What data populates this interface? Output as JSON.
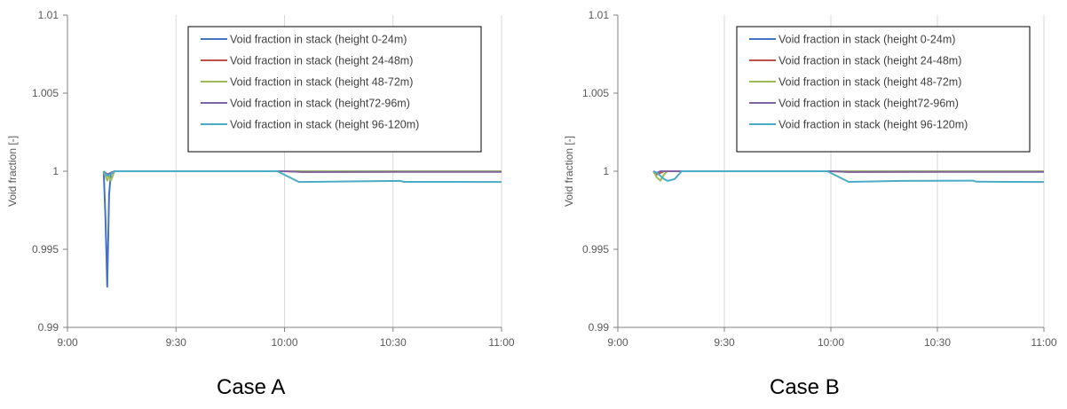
{
  "chart_data": [
    {
      "type": "line",
      "title": "",
      "caption": "Case A",
      "xlabel": "",
      "ylabel": "Void fraction [-]",
      "ylim": [
        0.99,
        1.01
      ],
      "yticks": [
        "0.99",
        "0.995",
        "1",
        "1.005",
        "1.01"
      ],
      "xlim": [
        "9:00",
        "11:00"
      ],
      "xticks": [
        "9:00",
        "9:30",
        "10:00",
        "10:30",
        "11:00"
      ],
      "grid": "vertical",
      "legend_position": "top-right",
      "series": [
        {
          "name": "Void fraction in stack (height 0-24m)",
          "color": "#4472C4",
          "x": [
            "9:10",
            "9:10:30",
            "9:11",
            "9:11:30",
            "9:12",
            "9:13",
            "9:15",
            "9:30",
            "10:00",
            "10:30",
            "11:00"
          ],
          "y": [
            1.0,
            0.997,
            0.9926,
            0.9985,
            0.9999,
            1.0,
            1.0,
            1.0,
            1.0,
            1.0,
            1.0
          ]
        },
        {
          "name": "Void fraction in stack (height 24-48m)",
          "color": "#C0504D",
          "x": [
            "9:10",
            "9:11",
            "9:12",
            "9:13",
            "9:30",
            "10:00",
            "10:05",
            "10:30",
            "11:00"
          ],
          "y": [
            1.0,
            0.9997,
            0.9998,
            1.0,
            1.0,
            1.0,
            0.99996,
            0.99997,
            0.99997
          ]
        },
        {
          "name": "Void fraction in stack (height 48-72m)",
          "color": "#9BBB59",
          "x": [
            "9:10",
            "9:11",
            "9:11:30",
            "9:12",
            "9:13",
            "9:30",
            "10:00",
            "11:00"
          ],
          "y": [
            1.0,
            0.9994,
            0.9997,
            0.9994,
            1.0,
            1.0,
            1.0,
            1.0
          ]
        },
        {
          "name": "Void fraction in stack (height72-96m)",
          "color": "#8064A2",
          "x": [
            "9:10",
            "9:11",
            "9:12",
            "9:13",
            "9:30",
            "10:00",
            "10:05",
            "10:30",
            "11:00"
          ],
          "y": [
            1.0,
            0.9998,
            0.9999,
            1.0,
            1.0,
            1.0,
            0.99995,
            0.99996,
            0.99996
          ]
        },
        {
          "name": "Void fraction in stack (height 96-120m)",
          "color": "#4BACC6",
          "x": [
            "9:10",
            "9:11",
            "9:12",
            "9:13",
            "9:30",
            "9:58",
            "10:04",
            "10:20",
            "10:32",
            "10:33",
            "10:45",
            "11:00"
          ],
          "y": [
            1.0,
            0.9997,
            0.9998,
            1.0,
            1.0,
            1.0,
            0.99931,
            0.99935,
            0.99938,
            0.99932,
            0.99932,
            0.99931
          ]
        }
      ]
    },
    {
      "type": "line",
      "title": "",
      "caption": "Case B",
      "xlabel": "",
      "ylabel": "Void fraction [-]",
      "ylim": [
        0.99,
        1.01
      ],
      "yticks": [
        "0.99",
        "0.995",
        "1",
        "1.005",
        "1.01"
      ],
      "xlim": [
        "9:00",
        "11:00"
      ],
      "xticks": [
        "9:00",
        "9:30",
        "10:00",
        "10:30",
        "11:00"
      ],
      "grid": "vertical",
      "legend_position": "top-right",
      "series": [
        {
          "name": "Void fraction in stack (height 0-24m)",
          "color": "#4472C4",
          "x": [
            "9:10",
            "9:11",
            "9:12",
            "9:13",
            "9:30",
            "10:00",
            "11:00"
          ],
          "y": [
            1.0,
            0.9998,
            0.9999,
            1.0,
            1.0,
            1.0,
            1.0
          ]
        },
        {
          "name": "Void fraction in stack (height 24-48m)",
          "color": "#C0504D",
          "x": [
            "9:10",
            "9:11",
            "9:12",
            "9:13",
            "9:30",
            "10:00",
            "10:05",
            "10:30",
            "11:00"
          ],
          "y": [
            1.0,
            0.9998,
            0.9999,
            1.0,
            1.0,
            1.0,
            0.99996,
            0.99997,
            0.99997
          ]
        },
        {
          "name": "Void fraction in stack (height 48-72m)",
          "color": "#9BBB59",
          "x": [
            "9:10",
            "9:11",
            "9:12",
            "9:13",
            "9:14",
            "9:30",
            "10:00",
            "11:00"
          ],
          "y": [
            1.0,
            0.9996,
            0.9994,
            0.9998,
            1.0,
            1.0,
            1.0,
            1.0
          ]
        },
        {
          "name": "Void fraction in stack (height72-96m)",
          "color": "#8064A2",
          "x": [
            "9:10",
            "9:11",
            "9:12",
            "9:30",
            "10:00",
            "10:05",
            "10:30",
            "11:00"
          ],
          "y": [
            1.0,
            0.9999,
            1.0,
            1.0,
            1.0,
            0.99995,
            0.99996,
            0.99996
          ]
        },
        {
          "name": "Void fraction in stack (height 96-120m)",
          "color": "#4BACC6",
          "x": [
            "9:10",
            "9:11",
            "9:12",
            "9:13",
            "9:14",
            "9:16",
            "9:18",
            "9:30",
            "9:59",
            "10:05",
            "10:20",
            "10:40",
            "10:41",
            "10:50",
            "11:00"
          ],
          "y": [
            1.0,
            0.9999,
            0.9997,
            0.9995,
            0.99938,
            0.9995,
            1.0,
            1.0,
            1.0,
            0.99932,
            0.99938,
            0.9994,
            0.99933,
            0.99932,
            0.99931
          ]
        }
      ]
    }
  ]
}
